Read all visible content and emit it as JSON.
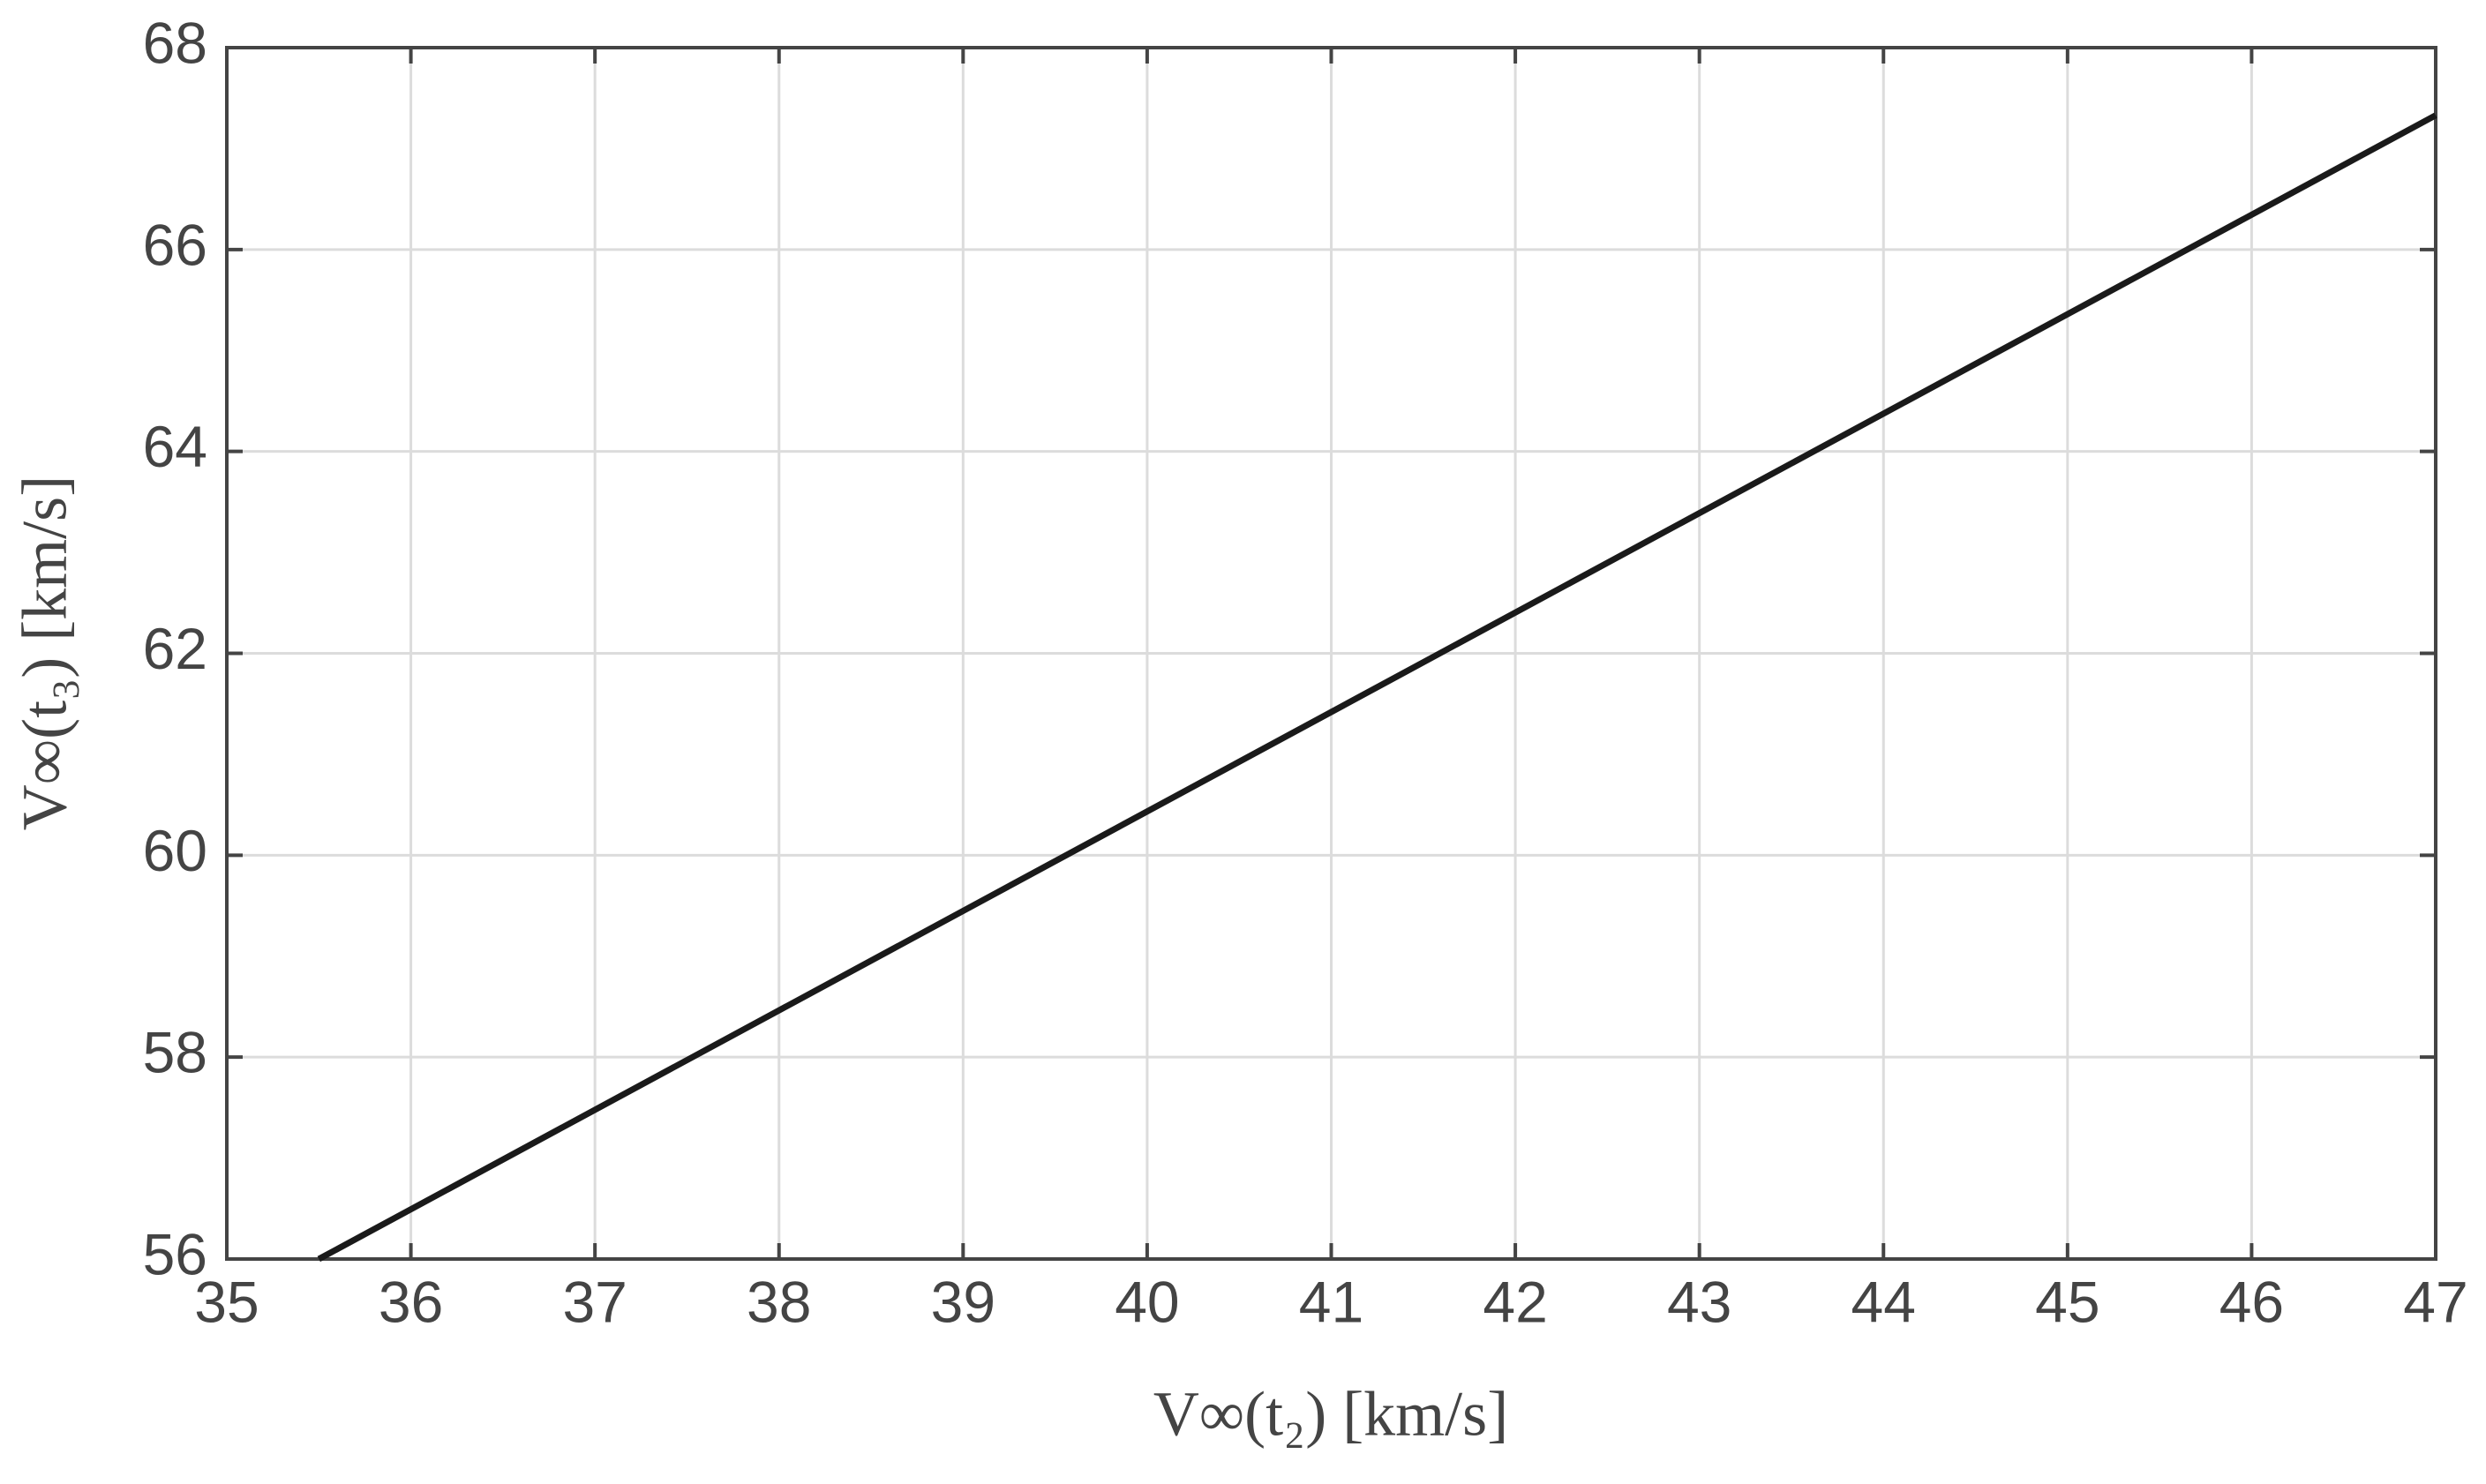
{
  "chart_data": {
    "type": "line",
    "x_label": "V∞(t₂) [km/s]",
    "y_label": "V∞(t₃) [km/s]",
    "x": [
      35.5,
      47
    ],
    "series": [
      {
        "color": "#1a1a1a",
        "values": [
          56.0,
          67.33
        ]
      }
    ],
    "xlim": [
      35,
      47
    ],
    "xticks": [
      35,
      36,
      37,
      38,
      39,
      40,
      41,
      42,
      43,
      44,
      45,
      46,
      47
    ],
    "ylim": [
      56,
      68
    ],
    "yticks": [
      56,
      58,
      60,
      62,
      64,
      66,
      68
    ],
    "grid": true
  }
}
